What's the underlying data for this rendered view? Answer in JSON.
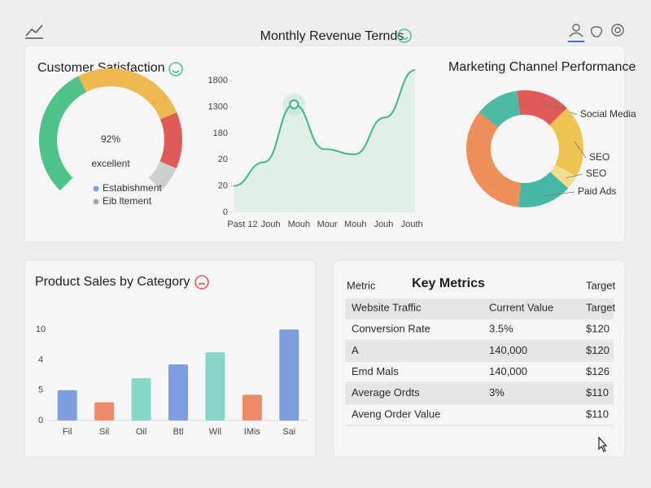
{
  "chart_data": [
    {
      "type": "gauge",
      "title": "Customer Satisfaction",
      "values": [
        92
      ],
      "value_labels": [
        "92%"
      ],
      "caption": "excellent",
      "legend": [
        "Estabishment",
        "Eib ltement"
      ],
      "colors": [
        "#4fc28a",
        "#eeb94e",
        "#e05a5a"
      ],
      "track_color": "#cfcfcf"
    },
    {
      "type": "line",
      "title": "Monthly Revenue Ternds",
      "categories": [
        "Past 12",
        "Jouh",
        "Mouh",
        "Mour",
        "Mouh",
        "Jouh",
        "Jouth"
      ],
      "values": [
        1.0,
        1.9,
        4.1,
        2.4,
        2.2,
        3.6,
        5.4
      ],
      "color": "#3fb88a",
      "ylim": [
        0,
        5.5
      ],
      "yticks": [
        {
          "value": 0,
          "label": "0"
        },
        {
          "value": 1,
          "label": "20"
        },
        {
          "value": 2,
          "label": "20"
        },
        {
          "value": 3,
          "label": "180"
        },
        {
          "value": 4,
          "label": "1300"
        },
        {
          "value": 5,
          "label": "1800"
        }
      ]
    },
    {
      "type": "donut",
      "title": "Marketing Channel Performance",
      "categories": [
        "Social Media",
        "SEO",
        "SEO",
        "Paid Ads",
        null,
        null
      ],
      "values": [
        15,
        20,
        4,
        15,
        34,
        12
      ],
      "colors": [
        "#e05a5a",
        "#ecc44f",
        "#f3dc8e",
        "#47b8a6",
        "#ec8f5a",
        "#4dbaa6"
      ]
    },
    {
      "type": "bar",
      "title": "Product Sales by Category",
      "categories": [
        "Fil",
        "Sil",
        "Oil",
        "Btl",
        "Wil",
        "IMis",
        "Sai"
      ],
      "values": [
        1.0,
        0.6,
        1.4,
        1.85,
        2.25,
        0.85,
        3.0
      ],
      "colors": [
        "#7f9ee0",
        "#ec8a6a",
        "#87d7c8",
        "#7f9ee0",
        "#87d7c8",
        "#ec8a6a",
        "#7f9ee0"
      ],
      "ylim": [
        0,
        3.3
      ],
      "yticks": [
        {
          "value": 0,
          "label": "0"
        },
        {
          "value": 1,
          "label": "5"
        },
        {
          "value": 2,
          "label": "4"
        },
        {
          "value": 3,
          "label": "10"
        }
      ]
    }
  ],
  "table": {
    "title": "Key Metrics",
    "columns": [
      "Metric",
      "Target"
    ],
    "rows": [
      {
        "metric": "Website Traffic",
        "value": "Current Value",
        "target": "Target"
      },
      {
        "metric": "Conversion Rate",
        "value": "3.5%",
        "target": "$120"
      },
      {
        "metric": "A",
        "value": "140,000",
        "target": "$120"
      },
      {
        "metric": "Emd Mals",
        "value": "140,000",
        "target": "$126"
      },
      {
        "metric": "Average Ordts",
        "value": "3%",
        "target": "$110"
      },
      {
        "metric": "Aveng Order Value",
        "target": "$110"
      }
    ]
  }
}
